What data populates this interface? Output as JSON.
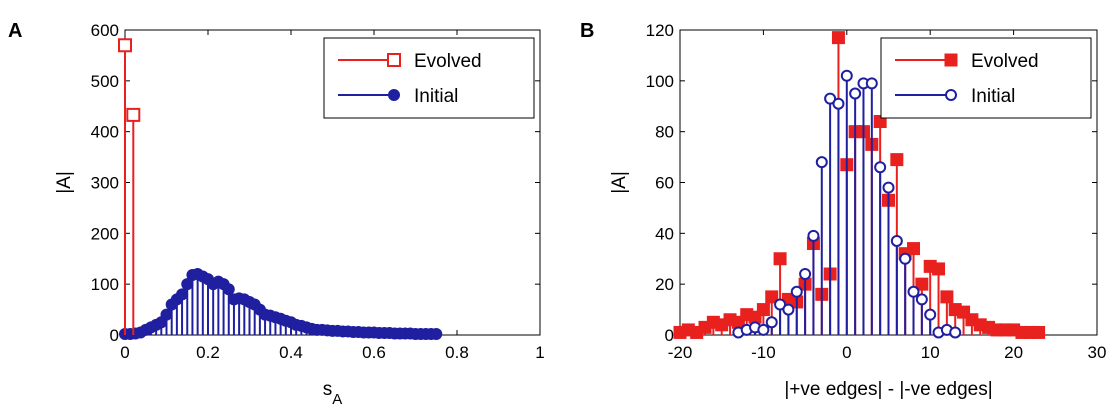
{
  "chart_data": [
    {
      "panel": "A",
      "type": "scatter",
      "style": "stem",
      "xlabel": "s",
      "xlabel_subscript": "A",
      "ylabel": "|A|",
      "xlim": [
        0,
        1
      ],
      "ylim": [
        0,
        600
      ],
      "xticks": [
        "0",
        "0.2",
        "0.4",
        "0.6",
        "0.8",
        "1"
      ],
      "yticks": [
        "0",
        "100",
        "200",
        "300",
        "400",
        "500",
        "600"
      ],
      "grid": false,
      "legend_position": "top-right",
      "series": [
        {
          "name": "Evolved",
          "color": "#e8211f",
          "marker": "open-square",
          "x": [
            0.0,
            0.02
          ],
          "y": [
            570,
            433
          ]
        },
        {
          "name": "Initial",
          "color": "#1f1fa0",
          "marker": "filled-circle",
          "x": [
            0.0,
            0.0125,
            0.025,
            0.0375,
            0.05,
            0.0625,
            0.075,
            0.0875,
            0.1,
            0.1125,
            0.125,
            0.1375,
            0.15,
            0.1625,
            0.175,
            0.1875,
            0.2,
            0.2125,
            0.225,
            0.2375,
            0.25,
            0.2625,
            0.275,
            0.2875,
            0.3,
            0.3125,
            0.325,
            0.3375,
            0.35,
            0.3625,
            0.375,
            0.3875,
            0.4,
            0.4125,
            0.425,
            0.4375,
            0.45,
            0.4625,
            0.475,
            0.4875,
            0.5,
            0.5125,
            0.525,
            0.5375,
            0.55,
            0.5625,
            0.575,
            0.5875,
            0.6,
            0.6125,
            0.625,
            0.6375,
            0.65,
            0.6625,
            0.675,
            0.6875,
            0.7,
            0.7125,
            0.725,
            0.7375,
            0.75
          ],
          "y": [
            2,
            2,
            3,
            5,
            10,
            15,
            20,
            25,
            40,
            60,
            70,
            80,
            100,
            118,
            120,
            115,
            110,
            100,
            105,
            100,
            90,
            70,
            72,
            70,
            65,
            60,
            50,
            40,
            38,
            35,
            32,
            28,
            25,
            20,
            18,
            15,
            12,
            10,
            10,
            9,
            8,
            8,
            7,
            7,
            6,
            6,
            5,
            5,
            5,
            4,
            4,
            4,
            3,
            3,
            3,
            3,
            2,
            2,
            2,
            2,
            2
          ]
        }
      ]
    },
    {
      "panel": "B",
      "type": "scatter",
      "style": "stem",
      "xlabel": "|+ve edges| - |-ve edges|",
      "ylabel": "|A|",
      "xlim": [
        -20,
        30
      ],
      "ylim": [
        0,
        120
      ],
      "xticks": [
        "-20",
        "-10",
        "0",
        "10",
        "20",
        "30"
      ],
      "yticks": [
        "0",
        "20",
        "40",
        "60",
        "80",
        "100",
        "120"
      ],
      "grid": false,
      "legend_position": "top-right",
      "series": [
        {
          "name": "Evolved",
          "color": "#e8211f",
          "marker": "filled-square",
          "x": [
            -20,
            -19,
            -18,
            -17,
            -16,
            -15,
            -14,
            -13,
            -12,
            -11,
            -10,
            -9,
            -8,
            -7,
            -6,
            -5,
            -4,
            -3,
            -2,
            -1,
            0,
            1,
            2,
            3,
            4,
            5,
            6,
            7,
            8,
            9,
            10,
            11,
            12,
            13,
            14,
            15,
            16,
            17,
            18,
            19,
            20,
            21,
            22,
            23
          ],
          "y": [
            1,
            2,
            1,
            3,
            5,
            4,
            6,
            5,
            8,
            7,
            10,
            15,
            30,
            14,
            13,
            20,
            36,
            16,
            24,
            117,
            67,
            80,
            80,
            75,
            84,
            53,
            69,
            32,
            34,
            20,
            27,
            26,
            15,
            10,
            9,
            6,
            4,
            3,
            2,
            2,
            2,
            1,
            1,
            1
          ]
        },
        {
          "name": "Initial",
          "color": "#1f1fa0",
          "marker": "open-circle",
          "x": [
            -13,
            -12,
            -11,
            -10,
            -9,
            -8,
            -7,
            -6,
            -5,
            -4,
            -3,
            -2,
            -1,
            0,
            1,
            2,
            3,
            4,
            5,
            6,
            7,
            8,
            9,
            10,
            11,
            12,
            13
          ],
          "y": [
            1,
            2,
            3,
            2,
            5,
            12,
            10,
            17,
            24,
            39,
            68,
            93,
            91,
            102,
            95,
            99,
            99,
            66,
            58,
            37,
            30,
            17,
            14,
            8,
            1,
            2,
            1
          ]
        }
      ]
    }
  ]
}
